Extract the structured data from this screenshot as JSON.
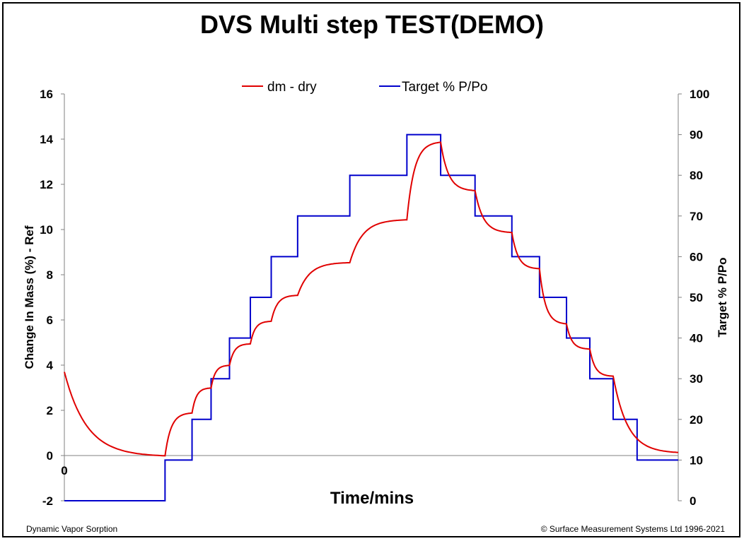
{
  "title": "DVS Multi step TEST(DEMO)",
  "footer": {
    "left": "Dynamic Vapor Sorption",
    "right": "© Surface Measurement Systems Ltd 1996-2021"
  },
  "colors": {
    "mass_series": "#e00000",
    "target_series": "#0000cc",
    "axis": "#808080"
  },
  "chart_data": {
    "type": "line",
    "title": "DVS Multi step TEST(DEMO)",
    "xlabel": "Time/mins",
    "x_tick_labels": [
      "0"
    ],
    "ylabel_left": "Change In Mass (%) - Ref",
    "ylabel_right": "Target % P/Po",
    "ylim_left": [
      -2,
      16
    ],
    "ylim_right": [
      0,
      100
    ],
    "yticks_left": [
      "-2",
      "0",
      "2",
      "4",
      "6",
      "8",
      "10",
      "12",
      "14",
      "16"
    ],
    "yticks_right": [
      "0",
      "10",
      "20",
      "30",
      "40",
      "50",
      "60",
      "70",
      "80",
      "90",
      "100"
    ],
    "xlim": [
      0,
      100
    ],
    "legend_position": "top",
    "series": [
      {
        "name": "dm - dry",
        "axis": "left",
        "style": "exponential-steps",
        "start": 3.7,
        "steps": [
          {
            "t0": 0,
            "t1": 16.4,
            "target": -0.05
          },
          {
            "t0": 16.4,
            "t1": 20.8,
            "target": 1.9
          },
          {
            "t0": 20.8,
            "t1": 23.9,
            "target": 3.0
          },
          {
            "t0": 23.9,
            "t1": 26.9,
            "target": 4.0
          },
          {
            "t0": 26.9,
            "t1": 30.3,
            "target": 4.95
          },
          {
            "t0": 30.3,
            "t1": 33.7,
            "target": 5.95
          },
          {
            "t0": 33.7,
            "t1": 38.0,
            "target": 7.1
          },
          {
            "t0": 38.0,
            "t1": 46.5,
            "target": 8.55
          },
          {
            "t0": 46.5,
            "t1": 55.8,
            "target": 10.45
          },
          {
            "t0": 55.8,
            "t1": 61.3,
            "target": 13.9
          },
          {
            "t0": 61.3,
            "t1": 66.9,
            "target": 11.7
          },
          {
            "t0": 66.9,
            "t1": 72.9,
            "target": 9.85
          },
          {
            "t0": 72.9,
            "t1": 77.4,
            "target": 8.25
          },
          {
            "t0": 77.4,
            "t1": 81.8,
            "target": 5.8
          },
          {
            "t0": 81.8,
            "t1": 85.6,
            "target": 4.7
          },
          {
            "t0": 85.6,
            "t1": 89.4,
            "target": 3.5
          },
          {
            "t0": 89.4,
            "t1": 100,
            "target": 0.1
          }
        ]
      },
      {
        "name": "Target % P/Po",
        "axis": "right",
        "style": "step",
        "t": [
          0,
          16.4,
          20.8,
          23.9,
          26.9,
          30.3,
          33.7,
          38.0,
          46.5,
          55.8,
          61.3,
          66.9,
          72.9,
          77.4,
          81.8,
          85.6,
          89.4,
          93.3,
          100
        ],
        "values": [
          0,
          10,
          20,
          30,
          40,
          50,
          60,
          70,
          80,
          90,
          80,
          70,
          60,
          50,
          40,
          30,
          20,
          10,
          0
        ]
      }
    ]
  }
}
